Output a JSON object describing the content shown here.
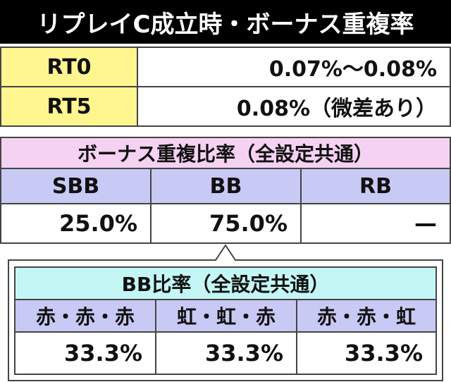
{
  "header": {
    "title": "リプレイC成立時・ボーナス重複率"
  },
  "rt_table": {
    "rows": [
      [
        "RT0",
        "0.07%～0.08%"
      ],
      [
        "RT5",
        "0.08%（微差あり）"
      ]
    ]
  },
  "bonus_table": {
    "title": "ボーナス重複比率（全設定共通）",
    "headers": [
      "SBB",
      "BB",
      "RB"
    ],
    "values": [
      "25.0%",
      "75.0%",
      "—"
    ]
  },
  "bb_table": {
    "title": "BB比率（全設定共通）",
    "headers": [
      "赤・赤・赤",
      "虹・虹・赤",
      "赤・赤・虹"
    ],
    "values": [
      "33.3%",
      "33.3%",
      "33.3%"
    ]
  }
}
